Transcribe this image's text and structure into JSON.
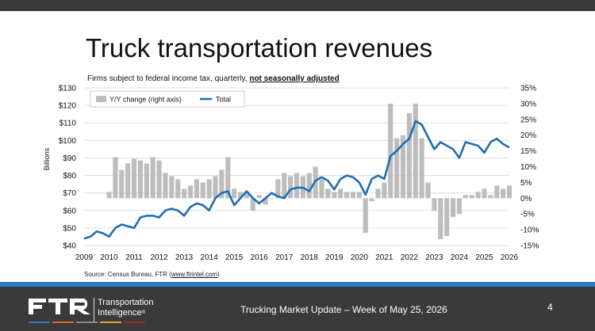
{
  "slide": {
    "title": "Truck transportation revenues",
    "subtitle_prefix": "Firms subject to federal income tax, quarterly, ",
    "subtitle_emphasis": "not seasonally adjusted",
    "source_prefix": "Source: Census Bureau, FTR (",
    "source_link": "www.ftrintel.com",
    "source_suffix": ")",
    "footer_text": "Trucking Market Update – Week of May 25, 2026",
    "page_number": "4",
    "company_line1": "Transportation",
    "company_line2": "Intelligence",
    "company_mark": "®",
    "stripe_colors": [
      "#2a7fc4",
      "#e06b2c",
      "#8a8a8a",
      "#e0a52c",
      "#9e2c2c"
    ]
  },
  "chart_data": {
    "type": "bar+line",
    "ylabel": "Billions",
    "y_left": {
      "min": 40,
      "max": 130,
      "ticks": [
        "$40",
        "$50",
        "$60",
        "$70",
        "$80",
        "$90",
        "$100",
        "$110",
        "$120",
        "$130"
      ]
    },
    "y_right": {
      "min": -15,
      "max": 35,
      "ticks": [
        "-15%",
        "-10%",
        "-5%",
        "0%",
        "5%",
        "10%",
        "15%",
        "20%",
        "25%",
        "30%",
        "35%"
      ]
    },
    "x_ticks": [
      "2009",
      "2010",
      "2011",
      "2012",
      "2013",
      "2014",
      "2015",
      "2016",
      "2017",
      "2018",
      "2019",
      "2020",
      "2021",
      "2022",
      "2023",
      "2024",
      "2025",
      "2026"
    ],
    "x_range": [
      2009.0,
      2026.0
    ],
    "legend": {
      "placement": "top-left",
      "bar_label": "Y/Y change (right axis)",
      "line_label": "Total"
    },
    "bar_color": "#bdbdbd",
    "line_color": "#1f6db5",
    "grid": true,
    "series": [
      {
        "name": "Y/Y change (right axis)",
        "axis": "right",
        "x": [
          2010.0,
          2010.25,
          2010.5,
          2010.75,
          2011.0,
          2011.25,
          2011.5,
          2011.75,
          2012.0,
          2012.25,
          2012.5,
          2012.75,
          2013.0,
          2013.25,
          2013.5,
          2013.75,
          2014.0,
          2014.25,
          2014.5,
          2014.75,
          2015.0,
          2015.25,
          2015.5,
          2015.75,
          2016.0,
          2016.25,
          2016.5,
          2016.75,
          2017.0,
          2017.25,
          2017.5,
          2017.75,
          2018.0,
          2018.25,
          2018.5,
          2018.75,
          2019.0,
          2019.25,
          2019.5,
          2019.75,
          2020.0,
          2020.25,
          2020.5,
          2020.75,
          2021.0,
          2021.25,
          2021.5,
          2021.75,
          2022.0,
          2022.25,
          2022.5,
          2022.75,
          2023.0,
          2023.25,
          2023.5,
          2023.75,
          2024.0,
          2024.25,
          2024.5,
          2024.75,
          2025.0,
          2025.25,
          2025.5,
          2025.75,
          2026.0
        ],
        "values": [
          2,
          13,
          9,
          11,
          12.5,
          12,
          11,
          13,
          12,
          8,
          7,
          6,
          3,
          4,
          6,
          5,
          6,
          7,
          9,
          13,
          3,
          2,
          2,
          -4,
          1,
          -2,
          0,
          6,
          8,
          7,
          8,
          7,
          8,
          10,
          6,
          3,
          2,
          3,
          2,
          2,
          2,
          -11,
          -1,
          3,
          5,
          30,
          19,
          20,
          27,
          30,
          19,
          5,
          -4,
          -13,
          -12,
          -6,
          -5,
          1,
          1,
          2,
          3,
          1,
          4,
          3,
          4
        ],
        "values_2020_note": ""
      },
      {
        "name": "Total",
        "axis": "left",
        "x": [
          2009.0,
          2009.25,
          2009.5,
          2009.75,
          2010.0,
          2010.25,
          2010.5,
          2010.75,
          2011.0,
          2011.25,
          2011.5,
          2011.75,
          2012.0,
          2012.25,
          2012.5,
          2012.75,
          2013.0,
          2013.25,
          2013.5,
          2013.75,
          2014.0,
          2014.25,
          2014.5,
          2014.75,
          2015.0,
          2015.25,
          2015.5,
          2015.75,
          2016.0,
          2016.25,
          2016.5,
          2016.75,
          2017.0,
          2017.25,
          2017.5,
          2017.75,
          2018.0,
          2018.25,
          2018.5,
          2018.75,
          2019.0,
          2019.25,
          2019.5,
          2019.75,
          2020.0,
          2020.25,
          2020.5,
          2020.75,
          2021.0,
          2021.25,
          2021.5,
          2021.75,
          2022.0,
          2022.25,
          2022.5,
          2022.75,
          2023.0,
          2023.25,
          2023.5,
          2023.75,
          2024.0,
          2024.25,
          2024.5,
          2024.75,
          2025.0,
          2025.25,
          2025.5,
          2025.75,
          2026.0
        ],
        "values": [
          44,
          45,
          48,
          47,
          45,
          50,
          52,
          51,
          50,
          56,
          57,
          57,
          56,
          60,
          61,
          60,
          57,
          62,
          64,
          63,
          60,
          67,
          70,
          71,
          63,
          67,
          71,
          67,
          64,
          67,
          70,
          68,
          67,
          72,
          73,
          73,
          71,
          77,
          79,
          77,
          72,
          78,
          80,
          79,
          76,
          69,
          78,
          80,
          78,
          91,
          94,
          98,
          101,
          111,
          109,
          102,
          95,
          99,
          97,
          95,
          90,
          99,
          98,
          97,
          93,
          99,
          101,
          98,
          96
        ]
      }
    ]
  }
}
